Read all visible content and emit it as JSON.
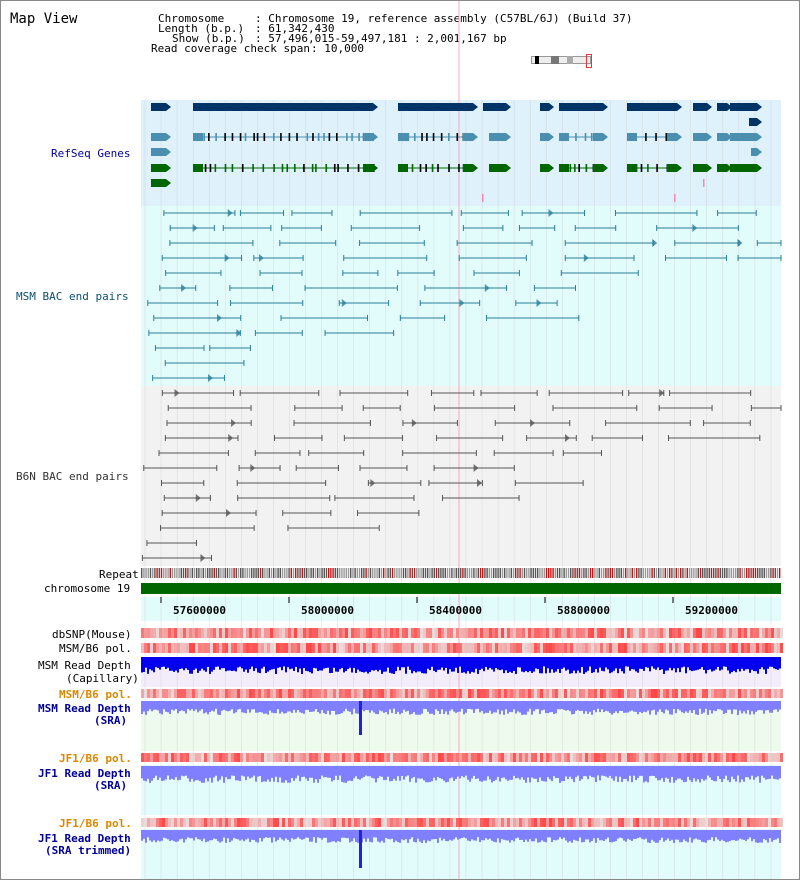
{
  "title": "Map View",
  "header": {
    "chromosome_key": "Chromosome",
    "chromosome_val": ": Chromosome 19, reference assembly (C57BL/6J) (Build 37)",
    "length_key": "Length (b.p.)",
    "length_val": ": 61,342,430",
    "show_key": "Show (b.p.)",
    "show_val": ": 57,496,015-59,497,181 : 2,001,167 bp",
    "coverage_key": "Read coverage check span",
    "coverage_val": ": 10,000"
  },
  "tracks": {
    "refseq": "RefSeq Genes",
    "msm_bac": "MSM BAC end pairs",
    "b6n_bac": "B6N BAC end pairs",
    "repeat": "Repeat",
    "chromosome": "chromosome 19",
    "dbsnp": "dbSNP(Mouse)",
    "msm_b6_pol_1": "MSM/B6 pol.",
    "msm_depth_cap_1": "MSM Read Depth",
    "msm_depth_cap_2": "(Capillary)",
    "msm_b6_pol_2": "MSM/B6 pol.",
    "msm_depth_sra_1": "MSM Read Depth",
    "msm_depth_sra_2": "(SRA)",
    "jf1_b6_pol_1": "JF1/B6 pol.",
    "jf1_depth_sra_1": "JF1 Read Depth",
    "jf1_depth_sra_2": "(SRA)",
    "jf1_b6_pol_2": "JF1/B6 pol.",
    "jf1_depth_trim_1": "JF1 Read Depth",
    "jf1_depth_trim_2": "(SRA trimmed)"
  },
  "axis": {
    "ticks": [
      "57600000",
      "58000000",
      "58400000",
      "58800000",
      "59200000"
    ]
  },
  "colors": {
    "refseq_bg": "#dff1fb",
    "msm_bg": "#e2fbfb",
    "b6n_bg": "#f2f2f2",
    "gene_dark": "#003366",
    "gene_teal": "#4a8fb0",
    "gene_green": "#006600",
    "msm_line": "#2b7f99",
    "b6n_line": "#555555",
    "chrom": "#006600",
    "depth_blue": "#0000ee",
    "depth_light": "#8080ff",
    "pol_red": "#ee3333",
    "label_blue": "#000099",
    "label_orange": "#dd8800"
  }
}
